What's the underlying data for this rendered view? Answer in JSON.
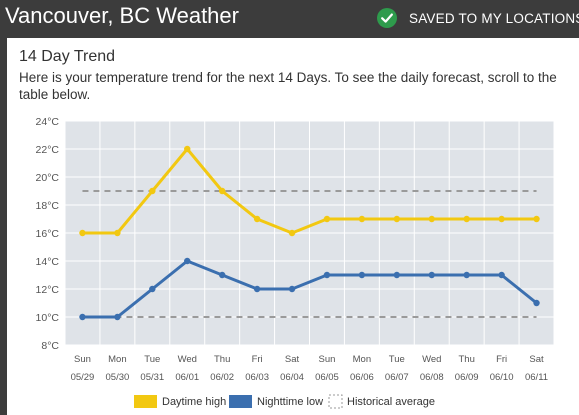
{
  "header": {
    "title": "Vancouver, BC Weather",
    "saved_label": "SAVED TO MY LOCATIONS"
  },
  "trend": {
    "title": "14 Day Trend",
    "description": "Here is your temperature trend for the next 14 Days. To see the daily forecast, scroll to the table below."
  },
  "colors": {
    "daytime": "#f2c811",
    "nighttime": "#3b6faf",
    "historical": "#9a9a9a",
    "plot_bg": "#dfe3e8"
  },
  "chart_data": {
    "type": "line",
    "ylim": [
      8,
      24
    ],
    "yticks": [
      8,
      10,
      12,
      14,
      16,
      18,
      20,
      22,
      24
    ],
    "ytick_labels": [
      "8°C",
      "10°C",
      "12°C",
      "14°C",
      "16°C",
      "18°C",
      "20°C",
      "22°C",
      "24°C"
    ],
    "categories": [
      {
        "day": "Sun",
        "date": "05/29"
      },
      {
        "day": "Mon",
        "date": "05/30"
      },
      {
        "day": "Tue",
        "date": "05/31"
      },
      {
        "day": "Wed",
        "date": "06/01"
      },
      {
        "day": "Thu",
        "date": "06/02"
      },
      {
        "day": "Fri",
        "date": "06/03"
      },
      {
        "day": "Sat",
        "date": "06/04"
      },
      {
        "day": "Sun",
        "date": "06/05"
      },
      {
        "day": "Mon",
        "date": "06/06"
      },
      {
        "day": "Tue",
        "date": "06/07"
      },
      {
        "day": "Wed",
        "date": "06/08"
      },
      {
        "day": "Thu",
        "date": "06/09"
      },
      {
        "day": "Fri",
        "date": "06/10"
      },
      {
        "day": "Sat",
        "date": "06/11"
      }
    ],
    "series": [
      {
        "name": "Daytime high",
        "values": [
          16,
          16,
          19,
          22,
          19,
          17,
          16,
          17,
          17,
          17,
          17,
          17,
          17,
          17
        ]
      },
      {
        "name": "Nighttime low",
        "values": [
          10,
          10,
          12,
          14,
          13,
          12,
          12,
          13,
          13,
          13,
          13,
          13,
          13,
          11
        ]
      }
    ],
    "historical_average": {
      "name": "Historical average",
      "high": 19,
      "low": 10
    },
    "grid": true,
    "legend_position": "bottom"
  }
}
